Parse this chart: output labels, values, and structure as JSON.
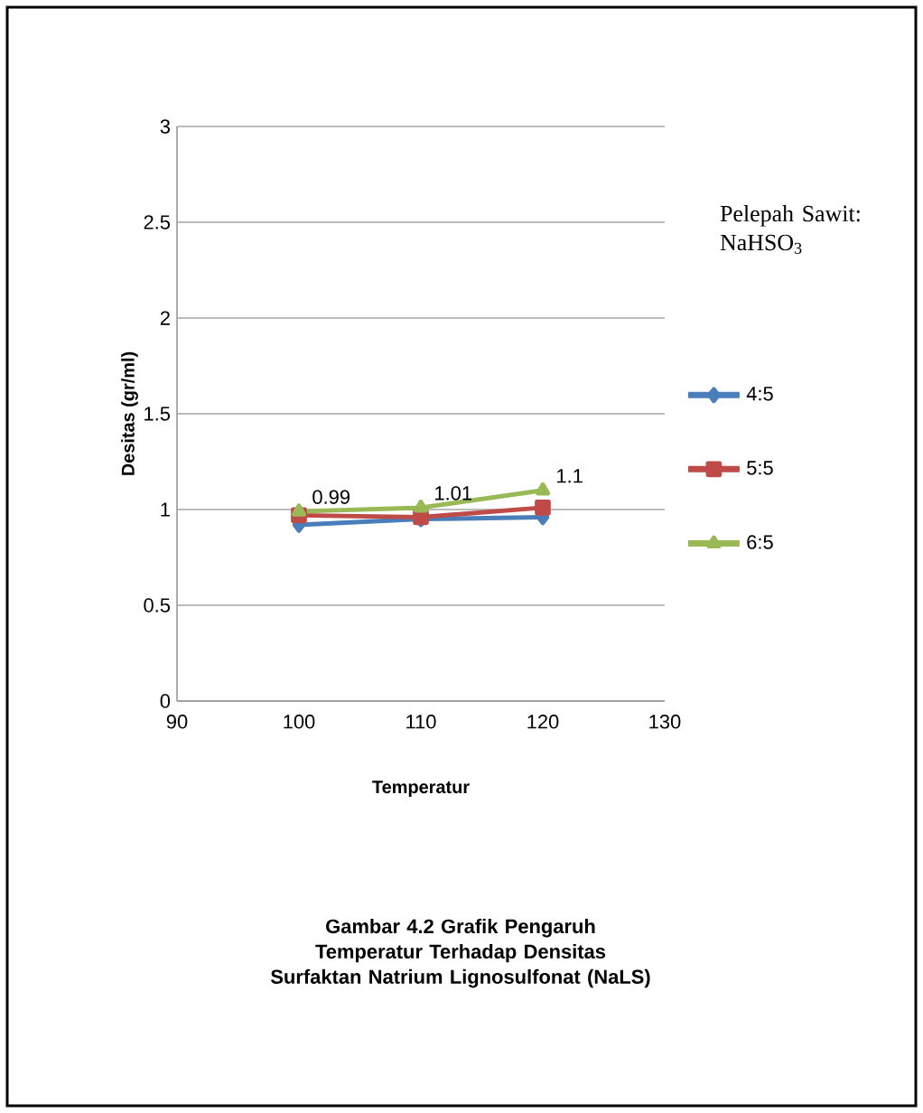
{
  "chart_data": {
    "type": "line",
    "xlabel": "Temperatur",
    "ylabel": "Desitas (gr/ml)",
    "legend_title": "Pelepah Sawit: NaHSO$_{3}$",
    "x": [
      100,
      110,
      120
    ],
    "xlim": [
      90,
      130
    ],
    "xticks": [
      90,
      100,
      110,
      120,
      130
    ],
    "ylim": [
      0,
      3
    ],
    "yticks": [
      0,
      0.5,
      1,
      1.5,
      2,
      2.5,
      3
    ],
    "grid": "y",
    "legend": "right",
    "series": [
      {
        "name": "4:5",
        "color": "#4a7ebb",
        "marker": "diamond",
        "values": [
          0.92,
          0.95,
          0.96
        ]
      },
      {
        "name": "5:5",
        "color": "#be4b48",
        "marker": "square",
        "values": [
          0.97,
          0.96,
          1.01
        ]
      },
      {
        "name": "6:5",
        "color": "#98b954",
        "marker": "triangle",
        "values": [
          0.99,
          1.01,
          1.1
        ],
        "value_labels": [
          "0.99",
          "1.01",
          "1.1"
        ]
      }
    ],
    "annotations": [
      "Gambar 4.2 Grafik Pengaruh Temperatur Terhadap Densitas Surfaktan Natrium Lignosulfonat (NaLS)"
    ]
  }
}
